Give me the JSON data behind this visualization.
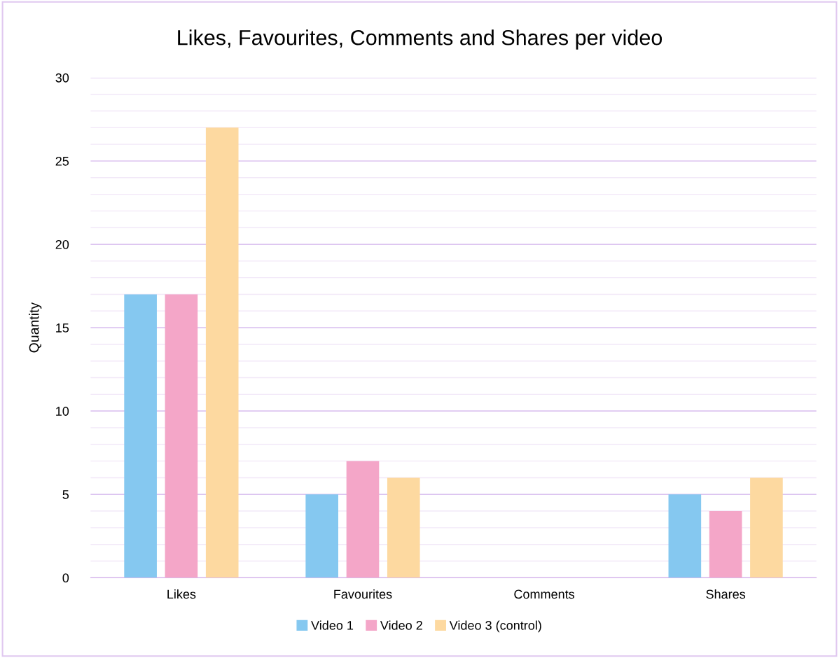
{
  "chart_data": {
    "type": "bar",
    "title": "Likes, Favourites, Comments and Shares per video",
    "ylabel": "Quantity",
    "categories": [
      "Likes",
      "Favourites",
      "Comments",
      "Shares"
    ],
    "series": [
      {
        "name": "Video 1",
        "color": "#85c8f0",
        "values": [
          17,
          5,
          0,
          5
        ]
      },
      {
        "name": "Video 2",
        "color": "#f4a6c8",
        "values": [
          17,
          7,
          0,
          4
        ]
      },
      {
        "name": "Video 3 (control)",
        "color": "#fdd9a0",
        "values": [
          27,
          6,
          0,
          6
        ]
      }
    ],
    "ylim": [
      0,
      30
    ],
    "yticks": [
      0,
      {
        "value": 1,
        "label": null
      },
      {
        "value": 2,
        "label": null
      },
      {
        "value": 3,
        "label": null
      },
      {
        "value": 4,
        "label": null
      },
      5,
      {
        "value": 6,
        "label": null
      },
      {
        "value": 7,
        "label": null
      },
      {
        "value": 8,
        "label": null
      },
      {
        "value": 9,
        "label": null
      },
      10,
      {
        "value": 11,
        "label": null
      },
      {
        "value": 12,
        "label": null
      },
      {
        "value": 13,
        "label": null
      },
      {
        "value": 14,
        "label": null
      },
      15,
      {
        "value": 16,
        "label": null
      },
      {
        "value": 17,
        "label": null
      },
      {
        "value": 18,
        "label": null
      },
      {
        "value": 19,
        "label": null
      },
      20,
      {
        "value": 21,
        "label": null
      },
      {
        "value": 22,
        "label": null
      },
      {
        "value": 23,
        "label": null
      },
      {
        "value": 24,
        "label": null
      },
      25,
      {
        "value": 26,
        "label": null
      },
      {
        "value": 27,
        "label": null
      },
      {
        "value": 28,
        "label": null
      },
      {
        "value": 29,
        "label": null
      },
      30
    ],
    "grid": "y",
    "legend": "bottom"
  }
}
